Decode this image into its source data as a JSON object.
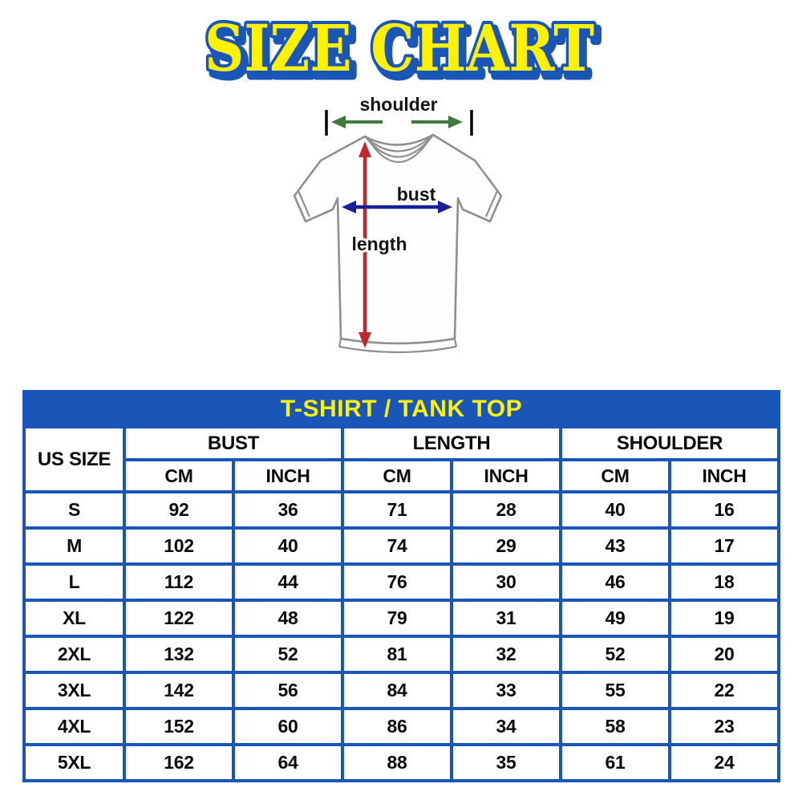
{
  "title": "SIZE CHART",
  "diagram": {
    "shoulder_label": "shoulder",
    "bust_label": "bust",
    "length_label": "length",
    "colors": {
      "shoulder_arrow": "#3d7a3d",
      "bust_arrow": "#1b1b9e",
      "length_arrow": "#c1272d",
      "shirt_outline": "#8f8f8f"
    }
  },
  "table": {
    "banner": "T-SHIRT / TANK TOP",
    "corner_header": "US SIZE",
    "groups": [
      "BUST",
      "LENGTH",
      "SHOULDER"
    ],
    "unit_headers": [
      "CM",
      "INCH",
      "CM",
      "INCH",
      "CM",
      "INCH"
    ],
    "rows": [
      {
        "size": "S",
        "values": [
          "92",
          "36",
          "71",
          "28",
          "40",
          "16"
        ]
      },
      {
        "size": "M",
        "values": [
          "102",
          "40",
          "74",
          "29",
          "43",
          "17"
        ]
      },
      {
        "size": "L",
        "values": [
          "112",
          "44",
          "76",
          "30",
          "46",
          "18"
        ]
      },
      {
        "size": "XL",
        "values": [
          "122",
          "48",
          "79",
          "31",
          "49",
          "19"
        ]
      },
      {
        "size": "2XL",
        "values": [
          "132",
          "52",
          "81",
          "32",
          "52",
          "20"
        ]
      },
      {
        "size": "3XL",
        "values": [
          "142",
          "56",
          "84",
          "33",
          "55",
          "22"
        ]
      },
      {
        "size": "4XL",
        "values": [
          "152",
          "60",
          "86",
          "34",
          "58",
          "23"
        ]
      },
      {
        "size": "5XL",
        "values": [
          "162",
          "64",
          "88",
          "35",
          "61",
          "24"
        ]
      }
    ],
    "colors": {
      "blue": "#1a55b8",
      "yellow": "#fff100"
    }
  },
  "chart_data": {
    "type": "table",
    "title": "T-SHIRT / TANK TOP",
    "columns": [
      "US SIZE",
      "BUST CM",
      "BUST INCH",
      "LENGTH CM",
      "LENGTH INCH",
      "SHOULDER CM",
      "SHOULDER INCH"
    ],
    "rows": [
      [
        "S",
        92,
        36,
        71,
        28,
        40,
        16
      ],
      [
        "M",
        102,
        40,
        74,
        29,
        43,
        17
      ],
      [
        "L",
        112,
        44,
        76,
        30,
        46,
        18
      ],
      [
        "XL",
        122,
        48,
        79,
        31,
        49,
        19
      ],
      [
        "2XL",
        132,
        52,
        81,
        32,
        52,
        20
      ],
      [
        "3XL",
        142,
        56,
        84,
        33,
        55,
        22
      ],
      [
        "4XL",
        152,
        60,
        86,
        34,
        58,
        23
      ],
      [
        "5XL",
        162,
        64,
        88,
        35,
        61,
        24
      ]
    ]
  }
}
